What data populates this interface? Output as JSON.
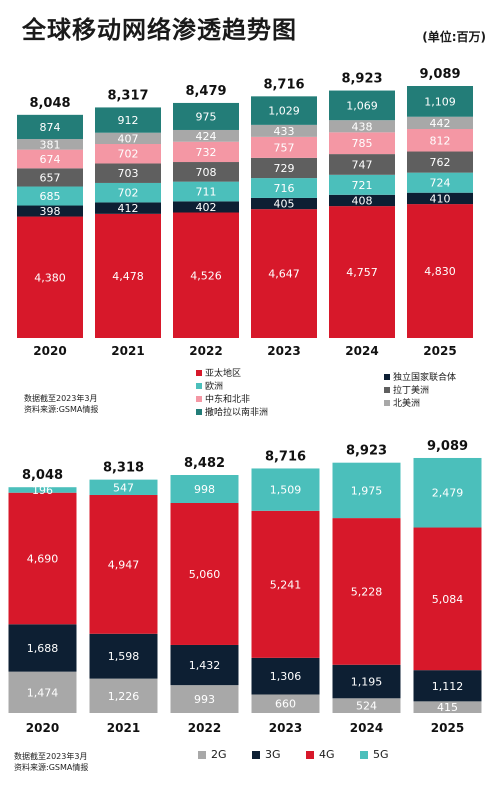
{
  "header": {
    "title": "全球移动网络渗透趋势图",
    "unit": "(单位:百万)"
  },
  "chart_data": [
    {
      "type": "bar",
      "stacked": true,
      "categories": [
        "2020",
        "2021",
        "2022",
        "2023",
        "2024",
        "2025"
      ],
      "totals": [
        "8,048",
        "8,317",
        "8,479",
        "8,716",
        "8,923",
        "9,089"
      ],
      "series": [
        {
          "name": "亚太地区",
          "color": "#d7182a",
          "values": [
            4380,
            4478,
            4526,
            4647,
            4757,
            4830
          ]
        },
        {
          "name": "独立国家联合体",
          "color": "#0d1f33",
          "values": [
            398,
            412,
            402,
            405,
            408,
            410
          ]
        },
        {
          "name": "欧洲",
          "color": "#4bbfbb",
          "values": [
            685,
            702,
            711,
            716,
            721,
            724
          ]
        },
        {
          "name": "拉丁美洲",
          "color": "#5f5f5f",
          "values": [
            657,
            703,
            708,
            729,
            747,
            762
          ]
        },
        {
          "name": "中东和北非",
          "color": "#f497a4",
          "values": [
            674,
            702,
            732,
            757,
            785,
            812
          ]
        },
        {
          "name": "北美洲",
          "color": "#a8a8a8",
          "values": [
            381,
            407,
            424,
            433,
            438,
            442
          ]
        },
        {
          "name": "撒哈拉以南非洲",
          "color": "#237d78",
          "values": [
            874,
            912,
            975,
            1029,
            1069,
            1109
          ]
        }
      ],
      "legend_left": [
        "亚太地区",
        "欧洲",
        "中东和北非",
        "撒哈拉以南非洲"
      ],
      "legend_right": [
        "独立国家联合体",
        "拉丁美洲",
        "北美洲"
      ],
      "note": [
        "数据截至2023年3月",
        "资料来源:GSMA情报"
      ]
    },
    {
      "type": "bar",
      "stacked": true,
      "categories": [
        "2020",
        "2021",
        "2022",
        "2023",
        "2024",
        "2025"
      ],
      "totals": [
        "8,048",
        "8,318",
        "8,482",
        "8,716",
        "8,923",
        "9,089"
      ],
      "series": [
        {
          "name": "2G",
          "color": "#a8a8a8",
          "values": [
            1474,
            1226,
            993,
            660,
            524,
            415
          ]
        },
        {
          "name": "3G",
          "color": "#0d1f33",
          "values": [
            1688,
            1598,
            1432,
            1306,
            1195,
            1112
          ]
        },
        {
          "name": "4G",
          "color": "#d7182a",
          "values": [
            4690,
            4947,
            5060,
            5241,
            5228,
            5084
          ]
        },
        {
          "name": "5G",
          "color": "#4bbfbb",
          "values": [
            196,
            547,
            998,
            1509,
            1975,
            2479
          ]
        }
      ],
      "legend": [
        "2G",
        "3G",
        "4G",
        "5G"
      ],
      "note": [
        "数据截至2023年3月",
        "资料来源:GSMA情报"
      ]
    }
  ]
}
